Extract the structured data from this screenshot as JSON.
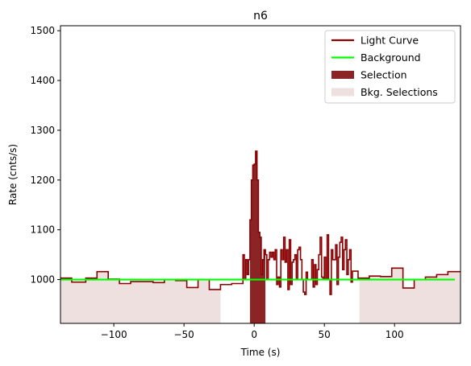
{
  "chart_data": {
    "type": "line",
    "title": "n6",
    "xlabel": "Time (s)",
    "ylabel": "Rate (cnts/s)",
    "xlim": [
      -138,
      147
    ],
    "ylim": [
      912,
      1510
    ],
    "xticks": [
      -100,
      -50,
      0,
      50,
      100
    ],
    "xtick_labels": [
      "−100",
      "−50",
      "0",
      "50",
      "100"
    ],
    "yticks": [
      1000,
      1100,
      1200,
      1300,
      1400,
      1500
    ],
    "ytick_labels": [
      "1000",
      "1100",
      "1200",
      "1300",
      "1400",
      "1500"
    ],
    "grid": false,
    "legend_position": "top-right",
    "legend": [
      {
        "label": "Light Curve",
        "kind": "line",
        "color": "#8b0000"
      },
      {
        "label": "Background",
        "kind": "line",
        "color": "#00ff00"
      },
      {
        "label": "Selection",
        "kind": "patch",
        "color": "#8b2525"
      },
      {
        "label": "Bkg. Selections",
        "kind": "patch",
        "color": "#efe0e0"
      }
    ],
    "light_curve": {
      "name": "Light Curve",
      "color": "#8b0000",
      "edges": [
        -138,
        -130,
        -120,
        -112,
        -104,
        -96,
        -88,
        -80,
        -72,
        -64,
        -56,
        -48,
        -40,
        -32,
        -24,
        -16,
        -8,
        -7,
        -6,
        -5,
        -4,
        -3,
        -2,
        -1,
        0,
        1,
        2,
        3,
        4,
        5,
        6,
        7,
        8,
        9,
        10,
        11,
        12,
        13,
        14,
        15,
        16,
        17,
        18,
        19,
        20,
        21,
        22,
        23,
        24,
        25,
        26,
        27,
        28,
        29,
        30,
        31,
        32,
        33,
        34,
        35,
        36,
        37,
        38,
        39,
        40,
        41,
        42,
        43,
        44,
        45,
        46,
        47,
        48,
        49,
        50,
        51,
        52,
        53,
        54,
        55,
        56,
        57,
        58,
        59,
        60,
        61,
        62,
        63,
        64,
        65,
        66,
        67,
        68,
        69,
        70,
        74,
        82,
        90,
        98,
        106,
        114,
        122,
        130,
        138,
        147
      ],
      "values": [
        1003,
        995,
        1003,
        1016,
        1001,
        992,
        996,
        996,
        994,
        1000,
        998,
        984,
        1000,
        980,
        990,
        992,
        1050,
        1000,
        1040,
        1010,
        1040,
        1120,
        1200,
        1230,
        1232,
        1258,
        1200,
        1095,
        1085,
        1010,
        1040,
        1060,
        1050,
        1000,
        1040,
        1055,
        1045,
        1055,
        1040,
        1060,
        990,
        1005,
        985,
        1060,
        1040,
        1085,
        1035,
        1060,
        980,
        1080,
        990,
        1035,
        1040,
        1050,
        1000,
        1060,
        1065,
        1040,
        1000,
        975,
        970,
        1015,
        1000,
        1000,
        1000,
        1040,
        985,
        1030,
        990,
        1020,
        1050,
        1085,
        1005,
        1000,
        1045,
        1000,
        1090,
        1000,
        970,
        1060,
        1040,
        1040,
        1070,
        990,
        1045,
        1075,
        1085,
        1020,
        1060,
        1080,
        1010,
        1040,
        1060,
        995,
        1017,
        1003,
        1007,
        1006,
        1023,
        983,
        1000,
        1005,
        1010,
        1016
      ]
    },
    "background": {
      "name": "Background",
      "color": "#00ff00",
      "x": [
        -138,
        143
      ],
      "y": [
        1000,
        1000
      ]
    },
    "selection": {
      "name": "Selection",
      "color": "#8b2525",
      "x_range": [
        -3,
        8
      ]
    },
    "bkg_selections": {
      "name": "Bkg. Selections",
      "color": "#efe0e0",
      "x_ranges": [
        [
          -138,
          -24
        ],
        [
          75,
          147
        ]
      ]
    }
  }
}
